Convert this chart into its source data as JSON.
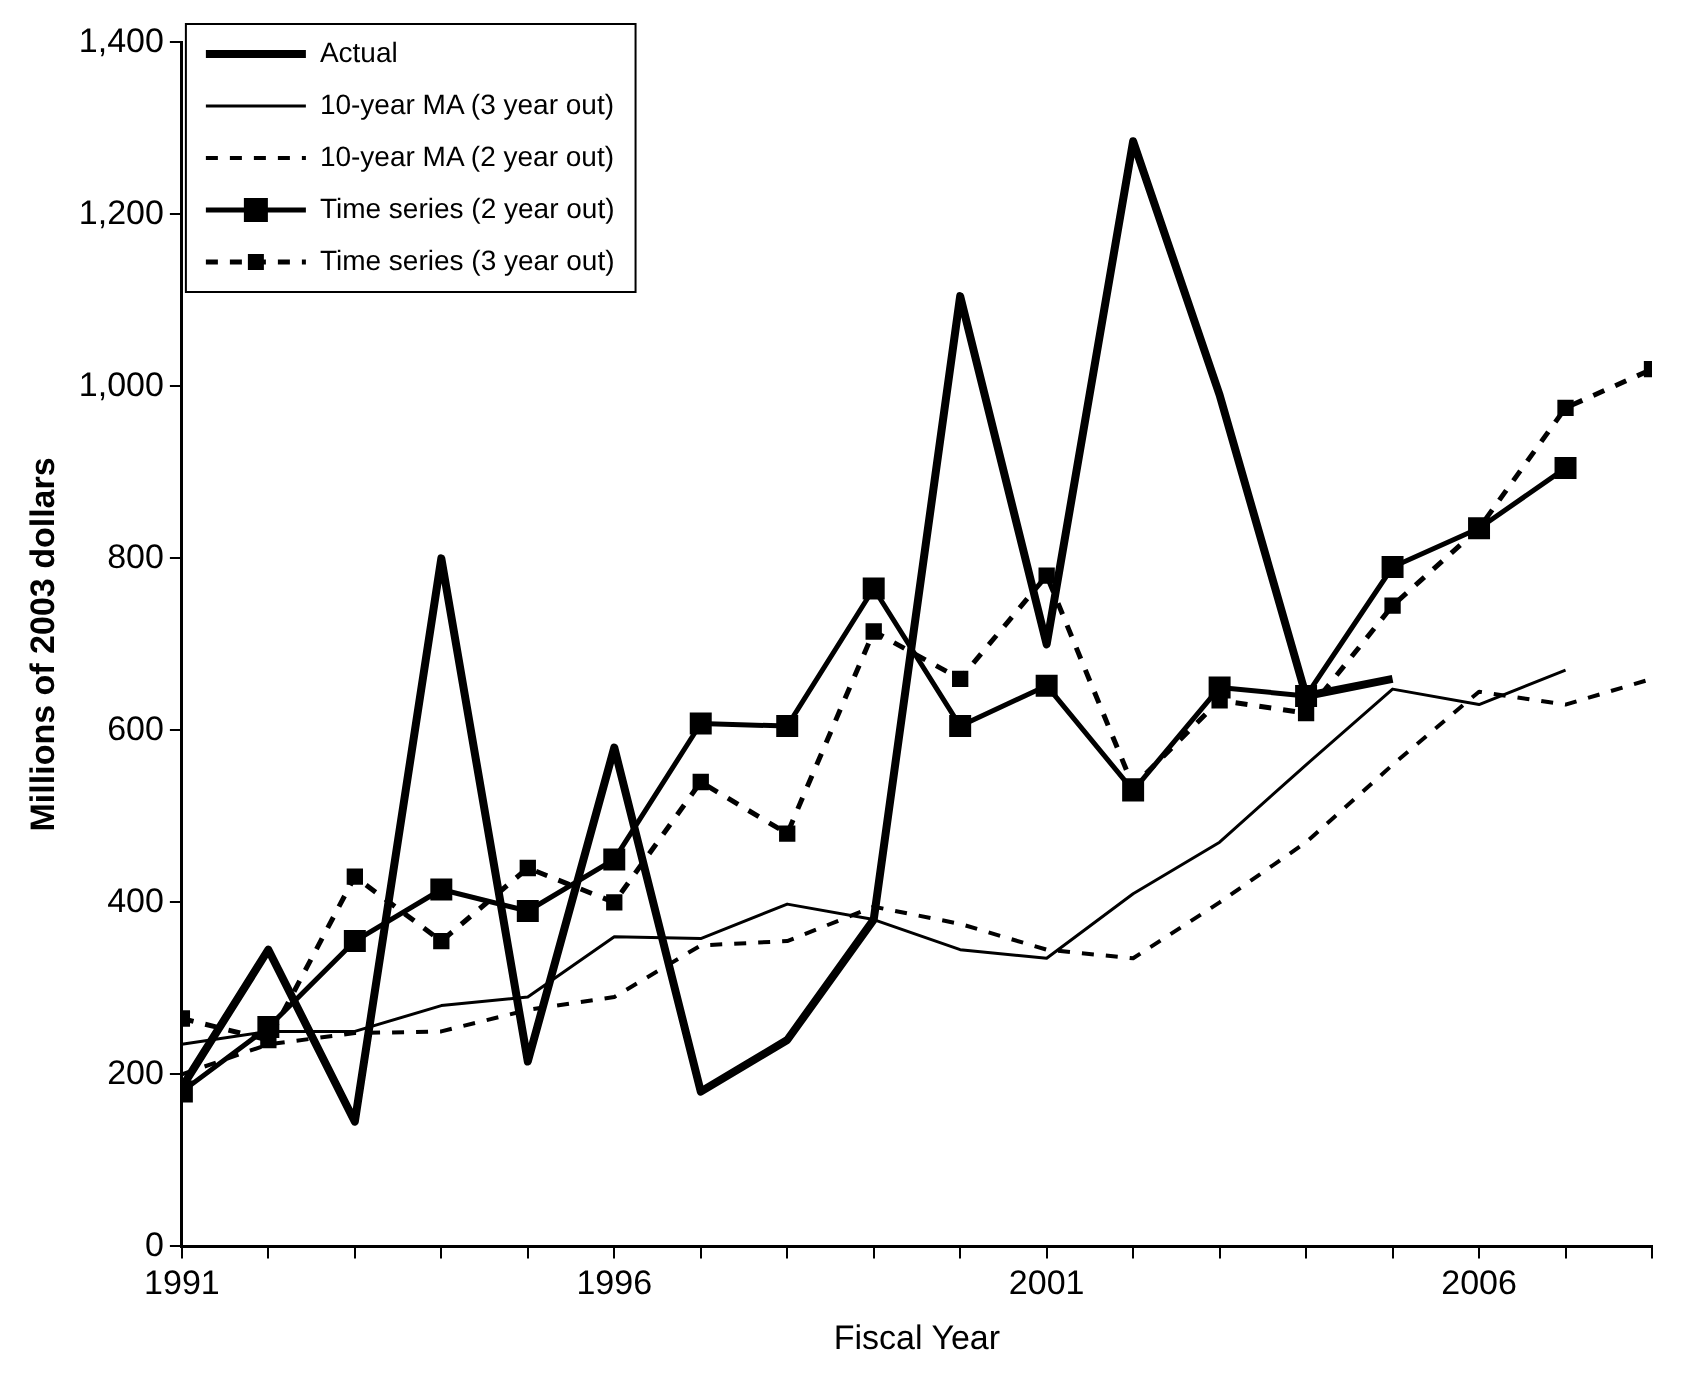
{
  "chart_data": {
    "type": "line",
    "xlabel": "Fiscal Year",
    "ylabel": "Millions of 2003 dollars",
    "xlim": [
      1991,
      2008
    ],
    "xticks": [
      1991,
      {
        "value": 1992,
        "label": null
      },
      {
        "value": 1993,
        "label": null
      },
      {
        "value": 1994,
        "label": null
      },
      {
        "value": 1995,
        "label": null
      },
      1996,
      {
        "value": 1997,
        "label": null
      },
      {
        "value": 1998,
        "label": null
      },
      {
        "value": 1999,
        "label": null
      },
      {
        "value": 2000,
        "label": null
      },
      2001,
      {
        "value": 2002,
        "label": null
      },
      {
        "value": 2003,
        "label": null
      },
      {
        "value": 2004,
        "label": null
      },
      {
        "value": 2005,
        "label": null
      },
      2006,
      {
        "value": 2007,
        "label": null
      },
      {
        "value": 2008,
        "label": null
      }
    ],
    "ylim": [
      0,
      1400
    ],
    "yticks": [
      0,
      200,
      400,
      600,
      800,
      {
        "value": 1000,
        "label": "1,000"
      },
      {
        "value": 1200,
        "label": "1,200"
      },
      {
        "value": 1400,
        "label": "1,400"
      }
    ],
    "grid": false,
    "legend": "top left",
    "series": [
      {
        "name": "Actual",
        "color": "#000000",
        "line_style": "solid",
        "marker": "none",
        "x": [
          1991,
          1992,
          1993,
          1994,
          1995,
          1996,
          1997,
          1998,
          1999,
          2000,
          2001,
          2002,
          2003,
          2004,
          2005
        ],
        "values": [
          185,
          345,
          145,
          800,
          215,
          580,
          180,
          240,
          380,
          1105,
          700,
          1285,
          990,
          640,
          660
        ]
      },
      {
        "name": "10-year MA (3 year out)",
        "color": "#000000",
        "line_style": "solid",
        "marker": "none",
        "x": [
          1991,
          1992,
          1993,
          1994,
          1995,
          1996,
          1997,
          1998,
          1999,
          2000,
          2001,
          2002,
          2003,
          2004,
          2005,
          2006,
          2007
        ],
        "values": [
          235,
          250,
          250,
          280,
          290,
          360,
          358,
          398,
          380,
          345,
          335,
          410,
          470,
          560,
          648,
          630,
          670
        ]
      },
      {
        "name": "10-year MA (2 year out)",
        "color": "#000000",
        "line_style": "dashed",
        "marker": "none",
        "x": [
          1991,
          1992,
          1993,
          1994,
          1995,
          1996,
          1997,
          1998,
          1999,
          2000,
          2001,
          2002,
          2003,
          2004,
          2005,
          2006,
          2007,
          2008
        ],
        "values": [
          200,
          235,
          248,
          250,
          275,
          290,
          350,
          355,
          395,
          375,
          345,
          335,
          400,
          470,
          560,
          645,
          630,
          660
        ]
      },
      {
        "name": "Time series (2 year out)",
        "color": "#000000",
        "line_style": "solid",
        "marker": "square",
        "x": [
          1991,
          1992,
          1993,
          1994,
          1995,
          1996,
          1997,
          1998,
          1999,
          2000,
          2001,
          2002,
          2003,
          2004,
          2005,
          2006,
          2007
        ],
        "values": [
          180,
          255,
          355,
          415,
          390,
          450,
          608,
          605,
          765,
          605,
          652,
          530,
          650,
          640,
          790,
          835,
          905
        ]
      },
      {
        "name": "Time series (3 year out)",
        "color": "#000000",
        "line_style": "dashed",
        "marker": "square",
        "x": [
          1991,
          1992,
          1993,
          1994,
          1995,
          1996,
          1997,
          1998,
          1999,
          2000,
          2001,
          2002,
          2003,
          2004,
          2005,
          2006,
          2007,
          2008
        ],
        "values": [
          265,
          240,
          430,
          355,
          440,
          400,
          540,
          480,
          715,
          660,
          780,
          535,
          635,
          620,
          745,
          835,
          975,
          1020
        ]
      }
    ]
  }
}
